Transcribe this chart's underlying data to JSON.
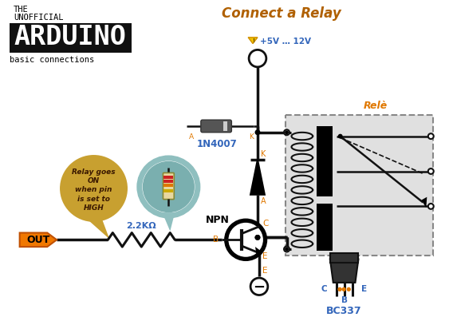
{
  "title": "Connect a Relay",
  "title_color": "#b06000",
  "bg_color": "#ffffff",
  "arduino_text": "ARDUINO",
  "arduino_bg": "#111111",
  "arduino_text_color": "#ffffff",
  "basic_connections": "basic connections",
  "voltage_label": "+5V … 12V",
  "diode_label": "1N4007",
  "transistor_label": "BC337",
  "resistor_label": "2.2KΩ",
  "relay_label": "Relè",
  "npn_label": "NPN",
  "out_label": "OUT",
  "bubble_text": "Relay goes\nON\nwhen pin\nis set to\nHIGH",
  "bubble_color": "#c8a030",
  "bubble_text_color": "#3a1800",
  "resistor_bubble_color": "#8fbfbf",
  "resistor_bubble_inner": "#7aafaf",
  "line_color": "#111111",
  "relay_bg": "#e0e0e0",
  "relay_border": "#888888",
  "label_color": "#e07800",
  "blue_label": "#3366bb"
}
